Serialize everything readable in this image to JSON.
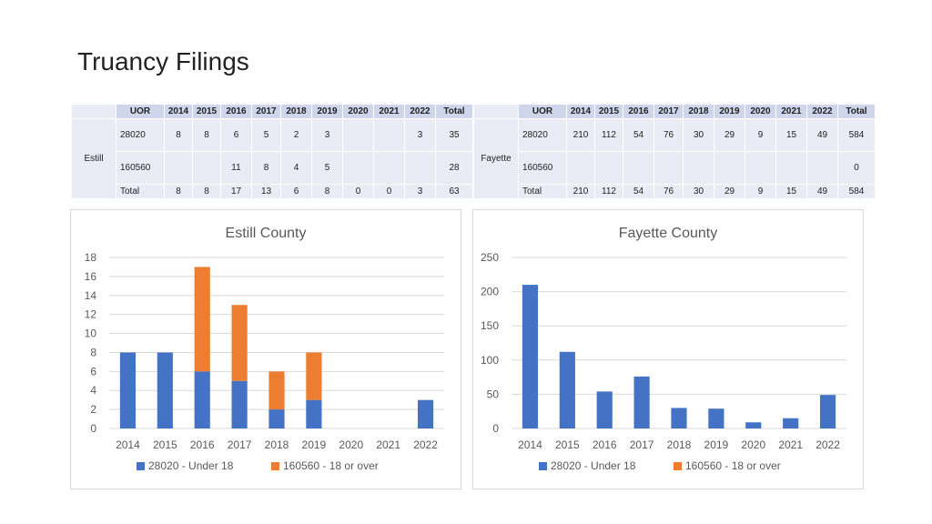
{
  "page": {
    "title": "Truancy Filings"
  },
  "colors": {
    "series1": "#4472c4",
    "series2": "#ed7d31",
    "grid": "#d9d9d9",
    "header_bg": "#cfd5ea",
    "cell_bg": "#e9ebf5"
  },
  "tables": [
    {
      "county": "Estill",
      "headers": [
        "UOR",
        "2014",
        "2015",
        "2016",
        "2017",
        "2018",
        "2019",
        "2020",
        "2021",
        "2022",
        "Total"
      ],
      "rows": [
        [
          "28020",
          "8",
          "8",
          "6",
          "5",
          "2",
          "3",
          "",
          "",
          "3",
          "35"
        ],
        [
          "160560",
          "",
          "",
          "11",
          "8",
          "4",
          "5",
          "",
          "",
          "",
          "28"
        ],
        [
          "Total",
          "8",
          "8",
          "17",
          "13",
          "6",
          "8",
          "0",
          "0",
          "3",
          "63"
        ]
      ]
    },
    {
      "county": "Fayette",
      "headers": [
        "UOR",
        "2014",
        "2015",
        "2016",
        "2017",
        "2018",
        "2019",
        "2020",
        "2021",
        "2022",
        "Total"
      ],
      "rows": [
        [
          "28020",
          "210",
          "112",
          "54",
          "76",
          "30",
          "29",
          "9",
          "15",
          "49",
          "584"
        ],
        [
          "160560",
          "",
          "",
          "",
          "",
          "",
          "",
          "",
          "",
          "",
          "0"
        ],
        [
          "Total",
          "210",
          "112",
          "54",
          "76",
          "30",
          "29",
          "9",
          "15",
          "49",
          "584"
        ]
      ]
    }
  ],
  "chart_data": [
    {
      "type": "bar",
      "stacked": true,
      "title": "Estill County",
      "categories": [
        "2014",
        "2015",
        "2016",
        "2017",
        "2018",
        "2019",
        "2020",
        "2021",
        "2022"
      ],
      "series": [
        {
          "name": "28020 - Under 18",
          "values": [
            8,
            8,
            6,
            5,
            2,
            3,
            0,
            0,
            3
          ]
        },
        {
          "name": "160560 - 18 or over",
          "values": [
            0,
            0,
            11,
            8,
            4,
            5,
            0,
            0,
            0
          ]
        }
      ],
      "ylim": [
        0,
        18
      ],
      "yticks": [
        0,
        2,
        4,
        6,
        8,
        10,
        12,
        14,
        16,
        18
      ],
      "grid": true,
      "legend": "bottom"
    },
    {
      "type": "bar",
      "stacked": true,
      "title": "Fayette County",
      "categories": [
        "2014",
        "2015",
        "2016",
        "2017",
        "2018",
        "2019",
        "2020",
        "2021",
        "2022"
      ],
      "series": [
        {
          "name": "28020 - Under 18",
          "values": [
            210,
            112,
            54,
            76,
            30,
            29,
            9,
            15,
            49
          ]
        },
        {
          "name": "160560 - 18 or over",
          "values": [
            0,
            0,
            0,
            0,
            0,
            0,
            0,
            0,
            0
          ]
        }
      ],
      "ylim": [
        0,
        250
      ],
      "yticks": [
        0,
        50,
        100,
        150,
        200,
        250
      ],
      "grid": true,
      "legend": "bottom"
    }
  ]
}
